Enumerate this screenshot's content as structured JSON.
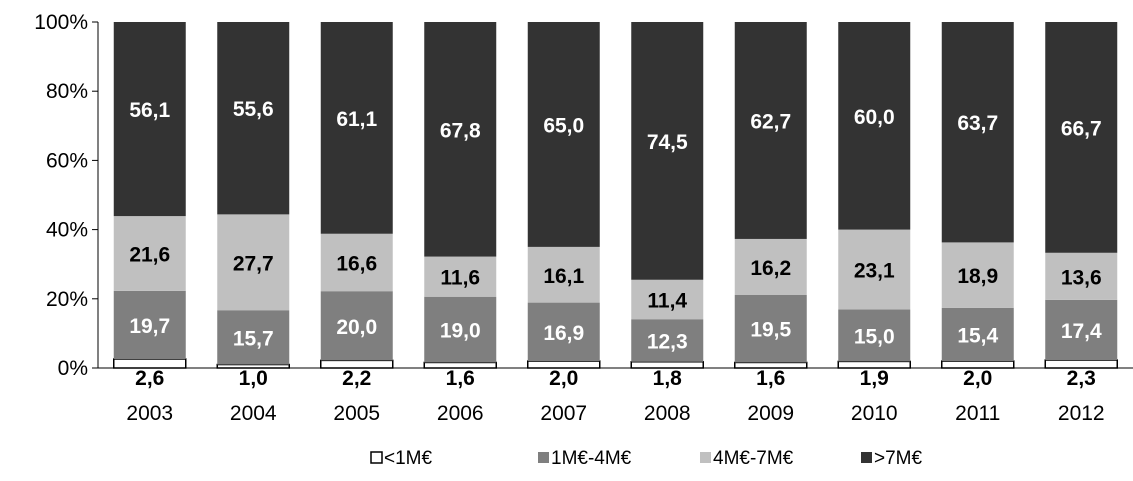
{
  "chart_data": {
    "type": "bar",
    "stacked": true,
    "percent": true,
    "categories": [
      "2003",
      "2004",
      "2005",
      "2006",
      "2007",
      "2008",
      "2009",
      "2010",
      "2011",
      "2012"
    ],
    "series": [
      {
        "name": "<1M€",
        "color": "#ffffff",
        "values": [
          2.6,
          1.0,
          2.2,
          1.6,
          2.0,
          1.8,
          1.6,
          1.9,
          2.0,
          2.3
        ],
        "labels": [
          "2,6",
          "1,0",
          "2,2",
          "1,6",
          "2,0",
          "1,8",
          "1,6",
          "1,9",
          "2,0",
          "2,3"
        ],
        "label_color": "#000000"
      },
      {
        "name": "1M€-4M€",
        "color": "#7f7f7f",
        "values": [
          19.7,
          15.7,
          20.0,
          19.0,
          16.9,
          12.3,
          19.5,
          15.0,
          15.4,
          17.4
        ],
        "labels": [
          "19,7",
          "15,7",
          "20,0",
          "19,0",
          "16,9",
          "12,3",
          "19,5",
          "15,0",
          "15,4",
          "17,4"
        ],
        "label_color": "#ffffff"
      },
      {
        "name": "4M€-7M€",
        "color": "#c0c0c0",
        "values": [
          21.6,
          27.7,
          16.6,
          11.6,
          16.1,
          11.4,
          16.2,
          23.1,
          18.9,
          13.6
        ],
        "labels": [
          "21,6",
          "27,7",
          "16,6",
          "11,6",
          "16,1",
          "11,4",
          "16,2",
          "23,1",
          "18,9",
          "13,6"
        ],
        "label_color": "#000000"
      },
      {
        "name": ">7M€",
        "color": "#333333",
        "values": [
          56.1,
          55.6,
          61.1,
          67.8,
          65.0,
          74.5,
          62.7,
          60.0,
          63.7,
          66.7
        ],
        "labels": [
          "56,1",
          "55,6",
          "61,1",
          "67,8",
          "65,0",
          "74,5",
          "62,7",
          "60,0",
          "63,7",
          "66,7"
        ],
        "label_color": "#ffffff"
      }
    ],
    "yticks": [
      "0%",
      "20%",
      "40%",
      "60%",
      "80%",
      "100%"
    ],
    "ylim": [
      0,
      100
    ],
    "grid": false,
    "legend_position": "bottom",
    "title": "",
    "xlabel": "",
    "ylabel": ""
  }
}
